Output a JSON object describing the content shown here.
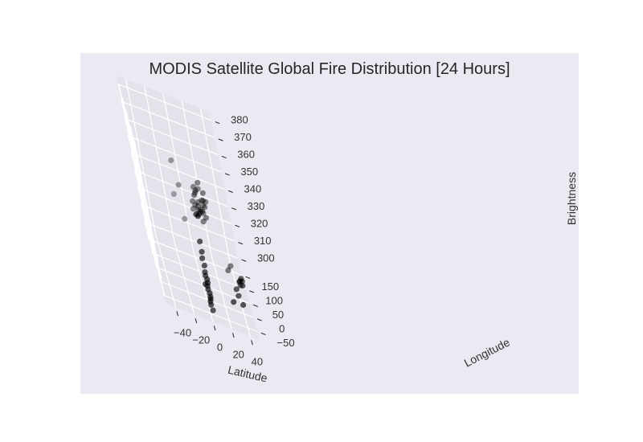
{
  "chart_data": {
    "type": "scatter",
    "projection": "3d",
    "title": "MODIS Satellite Global Fire Distribution [24 Hours]",
    "xlabel": "Latitude",
    "ylabel": "Longitude",
    "zlabel": "Brightness",
    "x_ticks": [
      -40,
      -20,
      0,
      20,
      40
    ],
    "y_ticks": [
      -50,
      0,
      50,
      100,
      150
    ],
    "z_ticks": [
      300,
      310,
      320,
      330,
      340,
      350,
      360,
      370,
      380
    ],
    "xlim": [
      -50,
      50
    ],
    "ylim": [
      -80,
      180
    ],
    "zlim": [
      295,
      385
    ],
    "grid": true,
    "colors": {
      "panel_background": "#eaeaf2",
      "pane": "#e3e3ec",
      "grid": "#ffffff",
      "marker": "#000000"
    },
    "series": [
      {
        "points": [
          {
            "x": 2,
            "y": -66,
            "z": 305
          },
          {
            "x": 3,
            "y": -66,
            "z": 308
          },
          {
            "x": 2,
            "y": -66,
            "z": 312
          },
          {
            "x": 3,
            "y": -66,
            "z": 316
          },
          {
            "x": 2,
            "y": -66,
            "z": 320
          },
          {
            "x": 3,
            "y": -66,
            "z": 300
          },
          {
            "x": 2,
            "y": -66,
            "z": 303
          },
          {
            "x": 3,
            "y": -66,
            "z": 310
          },
          {
            "x": 2,
            "y": -66,
            "z": 314
          },
          {
            "x": 3,
            "y": -66,
            "z": 318
          },
          {
            "x": 2,
            "y": -66,
            "z": 322
          },
          {
            "x": 3,
            "y": -66,
            "z": 326
          },
          {
            "x": 2,
            "y": -66,
            "z": 330
          },
          {
            "x": 3,
            "y": -66,
            "z": 334
          },
          {
            "x": 3,
            "y": -66,
            "z": 340
          },
          {
            "x": 0,
            "y": -62,
            "z": 314
          },
          {
            "x": 3,
            "y": -62,
            "z": 306
          },
          {
            "x": 30,
            "y": -20,
            "z": 303
          },
          {
            "x": 37,
            "y": 10,
            "z": 307
          },
          {
            "x": 38,
            "y": 12,
            "z": 303
          },
          {
            "x": 41,
            "y": 2,
            "z": 300
          },
          {
            "x": 44,
            "y": 60,
            "z": 305
          },
          {
            "x": 46,
            "y": 58,
            "z": 303
          },
          {
            "x": 46,
            "y": 65,
            "z": 306
          },
          {
            "x": 47,
            "y": 75,
            "z": 303
          },
          {
            "x": 44,
            "y": 70,
            "z": 301
          },
          {
            "x": 44,
            "y": 88,
            "z": 300
          },
          {
            "x": 34,
            "y": 104,
            "z": 302
          },
          {
            "x": 38,
            "y": 118,
            "z": 303
          },
          {
            "x": 11,
            "y": 96,
            "z": 330
          },
          {
            "x": 13,
            "y": 100,
            "z": 331
          },
          {
            "x": 15,
            "y": 104,
            "z": 332
          },
          {
            "x": 13,
            "y": 97,
            "z": 336
          },
          {
            "x": 17,
            "y": 101,
            "z": 333
          },
          {
            "x": 14,
            "y": 94,
            "z": 339
          },
          {
            "x": 20,
            "y": 100,
            "z": 340
          },
          {
            "x": 10,
            "y": 91,
            "z": 337
          },
          {
            "x": 18,
            "y": 108,
            "z": 331
          },
          {
            "x": 21,
            "y": 109,
            "z": 335
          },
          {
            "x": 19,
            "y": 106,
            "z": 336
          },
          {
            "x": 15,
            "y": 98,
            "z": 334
          },
          {
            "x": 11,
            "y": 102,
            "z": 329
          },
          {
            "x": 9,
            "y": 99,
            "z": 330
          },
          {
            "x": 7,
            "y": 92,
            "z": 334
          },
          {
            "x": 14,
            "y": 111,
            "z": 343
          },
          {
            "x": 12,
            "y": 103,
            "z": 346
          },
          {
            "x": 18,
            "y": 107,
            "z": 349
          },
          {
            "x": 22,
            "y": 112,
            "z": 343
          },
          {
            "x": 20,
            "y": 101,
            "z": 330
          },
          {
            "x": 16,
            "y": 95,
            "z": 328
          },
          {
            "x": 8,
            "y": 96,
            "z": 338
          },
          {
            "x": 23,
            "y": 106,
            "z": 339
          },
          {
            "x": 11,
            "y": 91,
            "z": 343
          },
          {
            "x": 17,
            "y": 108,
            "z": 345
          },
          {
            "x": 19,
            "y": 113,
            "z": 338
          },
          {
            "x": 13,
            "y": 108,
            "z": 332
          },
          {
            "x": 10,
            "y": 108,
            "z": 329
          },
          {
            "x": 13,
            "y": 114,
            "z": 341
          },
          {
            "x": -4,
            "y": 120,
            "z": 341
          },
          {
            "x": -7,
            "y": 130,
            "z": 353
          },
          {
            "x": -11,
            "y": 140,
            "z": 331
          },
          {
            "x": -4,
            "y": 140,
            "z": 318
          }
        ]
      }
    ]
  }
}
